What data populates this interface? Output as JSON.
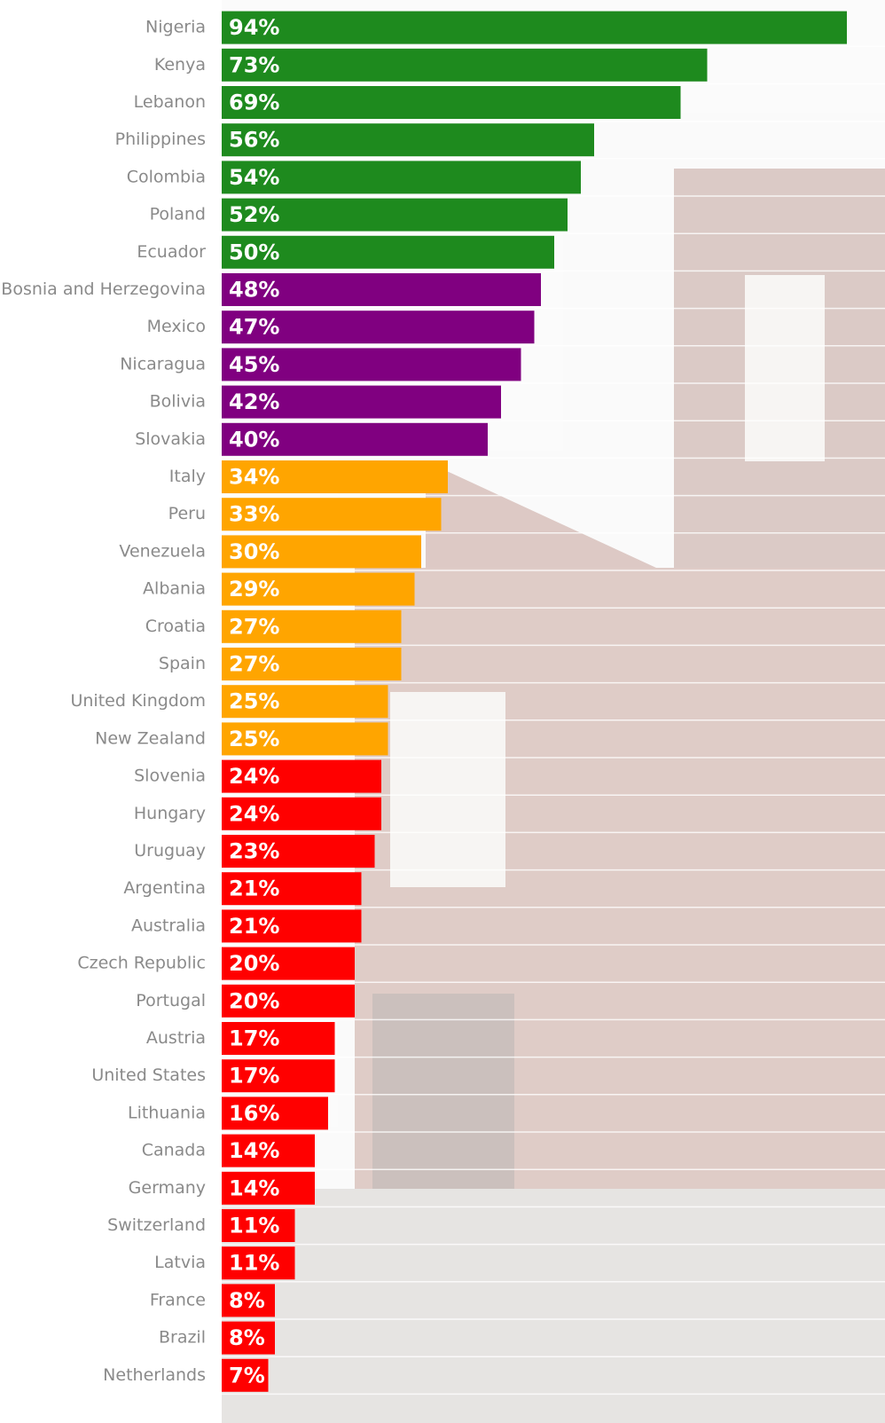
{
  "chart_data": {
    "type": "bar",
    "orientation": "horizontal",
    "categories": [
      "Nigeria",
      "Kenya",
      "Lebanon",
      "Philippines",
      "Colombia",
      "Poland",
      "Ecuador",
      "Bosnia and Herzegovina",
      "Mexico",
      "Nicaragua",
      "Bolivia",
      "Slovakia",
      "Italy",
      "Peru",
      "Venezuela",
      "Albania",
      "Croatia",
      "Spain",
      "United Kingdom",
      "New Zealand",
      "Slovenia",
      "Hungary",
      "Uruguay",
      "Argentina",
      "Australia",
      "Czech Republic",
      "Portugal",
      "Austria",
      "United States",
      "Lithuania",
      "Canada",
      "Germany",
      "Switzerland",
      "Latvia",
      "France",
      "Brazil",
      "Netherlands"
    ],
    "values": [
      94,
      73,
      69,
      56,
      54,
      52,
      50,
      48,
      47,
      45,
      42,
      40,
      34,
      33,
      30,
      29,
      27,
      27,
      25,
      25,
      24,
      24,
      23,
      21,
      21,
      20,
      20,
      17,
      17,
      16,
      14,
      14,
      11,
      11,
      8,
      8,
      7
    ],
    "value_labels": [
      "94%",
      "73%",
      "69%",
      "56%",
      "54%",
      "52%",
      "50%",
      "48%",
      "47%",
      "45%",
      "42%",
      "40%",
      "34%",
      "33%",
      "30%",
      "29%",
      "27%",
      "27%",
      "25%",
      "25%",
      "24%",
      "24%",
      "23%",
      "21%",
      "21%",
      "20%",
      "20%",
      "17%",
      "17%",
      "16%",
      "14%",
      "14%",
      "11%",
      "11%",
      "8%",
      "8%",
      "7%"
    ],
    "colors": [
      "#1e8a1e",
      "#1e8a1e",
      "#1e8a1e",
      "#1e8a1e",
      "#1e8a1e",
      "#1e8a1e",
      "#1e8a1e",
      "#800080",
      "#800080",
      "#800080",
      "#800080",
      "#800080",
      "#ffa500",
      "#ffa500",
      "#ffa500",
      "#ffa500",
      "#ffa500",
      "#ffa500",
      "#ffa500",
      "#ffa500",
      "#ff0000",
      "#ff0000",
      "#ff0000",
      "#ff0000",
      "#ff0000",
      "#ff0000",
      "#ff0000",
      "#ff0000",
      "#ff0000",
      "#ff0000",
      "#ff0000",
      "#ff0000",
      "#ff0000",
      "#ff0000",
      "#ff0000",
      "#ff0000",
      "#ff0000"
    ]
  }
}
